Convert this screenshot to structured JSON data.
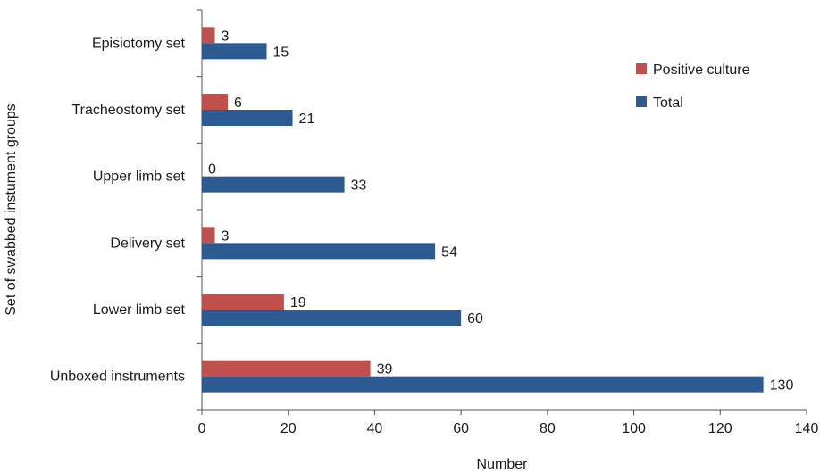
{
  "chart_data": {
    "type": "bar",
    "orientation": "horizontal",
    "title": "",
    "xlabel": "Number",
    "ylabel": "Set of swabbed instument groups",
    "categories": [
      "Episiotomy set",
      "Tracheostomy set",
      "Upper limb set",
      "Delivery set",
      "Lower limb set",
      "Unboxed instruments"
    ],
    "series": [
      {
        "name": "Positive culture",
        "color": "#c0504d",
        "values": [
          3,
          6,
          0,
          3,
          19,
          39
        ]
      },
      {
        "name": "Total",
        "color": "#2e5a92",
        "values": [
          15,
          21,
          33,
          54,
          60,
          130
        ]
      }
    ],
    "xlim": [
      0,
      140
    ],
    "xticks": [
      "0",
      "20",
      "40",
      "60",
      "80",
      "100",
      "120",
      "140"
    ],
    "grid": false,
    "legend_position": "top-right"
  }
}
